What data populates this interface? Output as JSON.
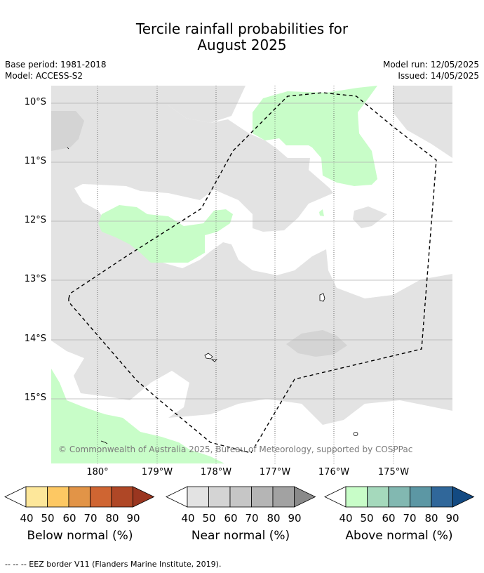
{
  "title_line1": "Tercile rainfall probabilities for",
  "title_line2": "August 2025",
  "base_period": "Base period: 1981-2018",
  "model": "Model: ACCESS-S2",
  "model_run": "Model run: 12/05/2025",
  "issued": "Issued: 14/05/2025",
  "copyright": "© Commonwealth of Australia 2025, Bureau of Meteorology, supported by COSPPac",
  "footnote": "--  --  -- EEZ border V11 (Flanders Marine Institute, 2019).",
  "lat_labels": [
    "10°S",
    "11°S",
    "12°S",
    "13°S",
    "14°S",
    "15°S"
  ],
  "lon_labels": [
    "180°",
    "179°W",
    "178°W",
    "177°W",
    "176°W",
    "175°W"
  ],
  "colors": {
    "near_normal_fill": "#e3e3e3",
    "near_normal_50": "#d4d4d4",
    "above_normal_fill": "#c8fdc8",
    "land_outline": "#000000",
    "grid": "#b0b0b0",
    "eez": "#000000"
  },
  "legends": [
    {
      "title": "Below normal (%)",
      "ticks": [
        "40",
        "50",
        "60",
        "70",
        "80",
        "90"
      ],
      "colors": [
        "#ffffff",
        "#fde79a",
        "#fdc863",
        "#e29447",
        "#cf6532",
        "#af4726",
        "#9a3620"
      ]
    },
    {
      "title": "Near normal (%)",
      "ticks": [
        "40",
        "50",
        "60",
        "70",
        "80",
        "90"
      ],
      "colors": [
        "#ffffff",
        "#e3e3e3",
        "#d4d4d4",
        "#c6c6c6",
        "#b5b5b5",
        "#a2a2a2",
        "#8a8a8a"
      ]
    },
    {
      "title": "Above normal (%)",
      "ticks": [
        "40",
        "50",
        "60",
        "70",
        "80",
        "90"
      ],
      "colors": [
        "#ffffff",
        "#c8fdc8",
        "#a5d9bc",
        "#82b8b1",
        "#5c97a4",
        "#30679a",
        "#134a82"
      ]
    }
  ]
}
